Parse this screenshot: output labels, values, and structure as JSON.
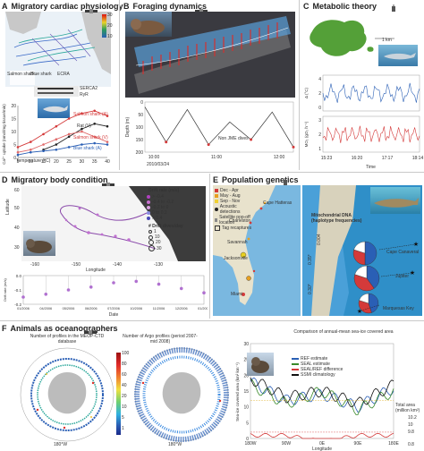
{
  "panels": {
    "a": {
      "letter": "A",
      "title": "Migratory cardiac physiology",
      "legend_top": "Salmon shark",
      "legend_bottom": "Blue shark",
      "map_labels": [
        "Salmon shark",
        "Blue shark",
        "ECRA"
      ],
      "ylabel": "Ca²⁺ uptake (nmol/mg tissue/min)",
      "xlabel": "Temperature (°C)",
      "series_labels": [
        "Salmon shark (A)",
        "Rat (V)",
        "Salmon shark (V)",
        "Blue shark (A)"
      ],
      "x_ticks": [
        "5",
        "10",
        "15",
        "20",
        "25",
        "30",
        "35",
        "40"
      ],
      "y_ticks": [
        "20",
        "15",
        "10",
        "5",
        "0"
      ],
      "sig_labels": [
        "SERCA2",
        "RyR"
      ],
      "map_colorbar": [
        "30",
        "20",
        "10"
      ]
    },
    "b": {
      "letter": "B",
      "title": "Foraging dynamics",
      "ylabel": "Depth (m)",
      "y_ticks": [
        "0",
        "50",
        "100",
        "150",
        "200"
      ],
      "date": "2010/03/24",
      "x_ticks": [
        "10:00",
        "11:00",
        "12:00"
      ],
      "annotation": "Non JME dives"
    },
    "c": {
      "letter": "C",
      "title": "Metabolic theory",
      "scale": "1 km",
      "y1_label": "Δ (°C)",
      "y2_label": "MO₂ (gO₂ h⁻¹)",
      "y1_ticks": [
        "4",
        "2",
        "0"
      ],
      "y2_ticks": [
        "3",
        "2",
        "1"
      ],
      "x_ticks": [
        "15:23",
        "16:20",
        "17:17",
        "18:14"
      ],
      "xlabel": "Time"
    },
    "d": {
      "letter": "D",
      "title": "Migratory body condition",
      "legend_title": "Drift rate (m/s)",
      "legend_items": [
        "> -0.4",
        "-0.4 to -0.2",
        "-0.2 to 0",
        "0 to 0.2",
        "> 0.4"
      ],
      "dives_title": "# Drift dives/day",
      "dives_items": [
        "1",
        "10",
        "20",
        "30"
      ],
      "ylabel": "Latitude",
      "xlabel": "Longitude",
      "lat_ticks": [
        "60",
        "50",
        "40",
        "30"
      ],
      "lon_ticks": [
        "-160",
        "-150",
        "-140",
        "-130"
      ],
      "bottom_ylabel": "Drift rate (m/s)",
      "bottom_y_ticks": [
        "0.0",
        "-0.1",
        "-0.2"
      ],
      "bottom_x_ticks": [
        "01/2006",
        "04/2006",
        "05/2006",
        "06/2006",
        "07/2006",
        "10/2006",
        "11/2006",
        "12/2006",
        "01/2007"
      ],
      "bottom_xlabel": "Date"
    },
    "e": {
      "letter": "E",
      "title": "Population genetics",
      "legend_items": [
        "Dec - Apr",
        "May - Aug",
        "Sep - Nov",
        "Acoustic detections",
        "Satellite pop-off location",
        "Tag recaptures"
      ],
      "places": [
        "Cape Hatteras",
        "Charleston",
        "Savannah",
        "Jacksonville",
        "Miami"
      ],
      "inset_title": "Mitochondrial DNA (haplotype frequencies)",
      "sites": [
        "Cape Canaveral",
        "Jupiter",
        "Marquesas Key"
      ],
      "stats": [
        "0.004",
        "0.35*",
        "0.30*"
      ]
    },
    "f": {
      "letter": "F",
      "title": "Animals as oceanographers",
      "map1_title": "Number of profiles in the MEOP-CTD database",
      "map2_title": "Number of Argo profiles (period 2007-mid 2008)",
      "cb_ticks": [
        "100",
        "80",
        "60",
        "40",
        "20",
        "10",
        "5",
        "1"
      ],
      "lon_labels": [
        "180°W",
        "180°W"
      ],
      "chart_title": "Comparison of annual-mean sea-ice covered area",
      "legend": [
        "REF estimate",
        "SEAL estimate",
        "SEAL/REF difference",
        "SSMI climatology"
      ],
      "ylabel": "Sea-ice covered area (km² km⁻¹)",
      "xlabel": "Longitude",
      "x_ticks": [
        "180W",
        "90W",
        "0E",
        "90E",
        "180E"
      ],
      "y_ticks": [
        "30",
        "25",
        "20",
        "15",
        "10",
        "5",
        "0"
      ],
      "total_label": "Total area (million km²)",
      "totals": [
        "10.2",
        "10",
        "9.8",
        "0.8"
      ]
    }
  },
  "chart_data": [
    {
      "type": "line",
      "title": "",
      "xlabel": "Temperature (°C)",
      "ylabel": "Ca²⁺ uptake (nmol/mg tissue/min)",
      "x": [
        5,
        10,
        15,
        20,
        25,
        30,
        35,
        40
      ],
      "ylim": [
        0,
        20
      ],
      "series": [
        {
          "name": "Salmon shark (A)",
          "values": [
            4,
            6,
            9,
            12,
            15,
            17,
            18,
            16
          ]
        },
        {
          "name": "Rat (V)",
          "values": [
            null,
            null,
            3,
            5,
            8,
            11,
            13,
            12
          ]
        },
        {
          "name": "Salmon shark (V)",
          "values": [
            2,
            3,
            5,
            7,
            9,
            10,
            8,
            6
          ]
        },
        {
          "name": "Blue shark (A)",
          "values": [
            1,
            2,
            2.5,
            3,
            4,
            5,
            5.5,
            5
          ]
        }
      ]
    },
    {
      "type": "line",
      "title": "",
      "xlabel": "Time",
      "ylabel": "Depth (m)",
      "x": [
        "10:00",
        "10:20",
        "10:40",
        "11:00",
        "11:20",
        "11:40",
        "12:00",
        "12:20"
      ],
      "ylim": [
        0,
        200
      ],
      "series": [
        {
          "name": "",
          "values": [
            20,
            160,
            30,
            170,
            80,
            150,
            40,
            180
          ]
        }
      ]
    },
    {
      "type": "line",
      "title": "",
      "xlabel": "Time",
      "ylabel": "MO₂ (gO₂ h⁻¹)",
      "x": [
        "15:23",
        "16:20",
        "17:17",
        "18:14"
      ],
      "series": [
        {
          "name": "",
          "values": [
            2.1,
            1.8,
            2.3,
            1.9
          ]
        }
      ]
    },
    {
      "type": "scatter",
      "title": "",
      "xlabel": "Date",
      "ylabel": "Drift rate (m/s)",
      "x": [
        "01/2006",
        "04/2006",
        "05/2006",
        "06/2006",
        "07/2006",
        "10/2006",
        "11/2006",
        "12/2006",
        "01/2007"
      ],
      "ylim": [
        -0.2,
        0
      ],
      "series": [
        {
          "name": "",
          "values": [
            -0.15,
            -0.13,
            -0.1,
            -0.08,
            -0.05,
            -0.04,
            -0.06,
            -0.09,
            -0.12
          ]
        }
      ]
    },
    {
      "type": "line",
      "title": "Comparison of annual-mean sea-ice covered area",
      "xlabel": "Longitude",
      "ylabel": "Sea-ice covered area (km² km⁻¹)",
      "x": [
        "180W",
        "90W",
        "0E",
        "90E",
        "180E"
      ],
      "ylim": [
        0,
        30
      ],
      "series": [
        {
          "name": "REF estimate",
          "values": [
            18,
            12,
            14,
            10,
            16
          ]
        },
        {
          "name": "SEAL estimate",
          "values": [
            17,
            11,
            15,
            9,
            15
          ]
        },
        {
          "name": "SEAL/REF difference",
          "values": [
            1,
            1,
            -1,
            1,
            1
          ]
        },
        {
          "name": "SSMI climatology",
          "values": [
            19,
            13,
            15,
            11,
            17
          ]
        }
      ]
    }
  ],
  "colors": {
    "blue": "#2a5fb5",
    "red": "#d43a3a",
    "green": "#3a8a2a",
    "land": "#54a038"
  }
}
